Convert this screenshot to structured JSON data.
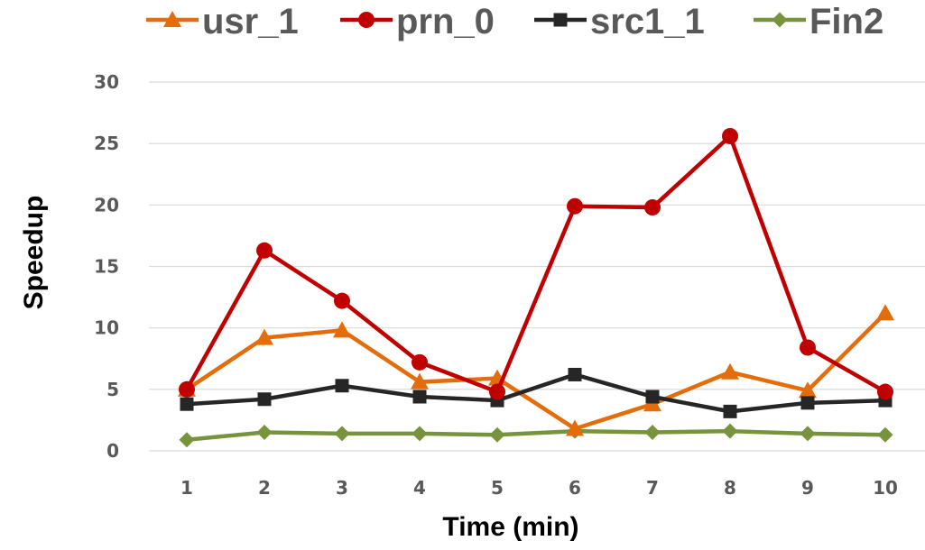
{
  "chart_data": {
    "type": "line",
    "xlabel": "Time (min)",
    "ylabel": "Speedup",
    "categories": [
      "1",
      "2",
      "3",
      "4",
      "5",
      "6",
      "7",
      "8",
      "9",
      "10"
    ],
    "ylim": [
      0,
      30
    ],
    "yticks": [
      "0",
      "5",
      "10",
      "15",
      "20",
      "25",
      "30"
    ],
    "grid": true,
    "legend_position": "top",
    "series": [
      {
        "name": "usr_1",
        "color": "#e46c0a",
        "marker": "triangle",
        "values": [
          5.0,
          9.2,
          9.8,
          5.6,
          5.9,
          1.8,
          3.8,
          6.4,
          4.9,
          11.2
        ]
      },
      {
        "name": "prn_0",
        "color": "#c00000",
        "marker": "circle",
        "values": [
          5.0,
          16.3,
          12.2,
          7.2,
          4.8,
          19.9,
          19.8,
          25.6,
          8.4,
          4.8
        ]
      },
      {
        "name": "src1_1",
        "color": "#262626",
        "marker": "square",
        "values": [
          3.8,
          4.2,
          5.3,
          4.4,
          4.1,
          6.2,
          4.4,
          3.2,
          3.9,
          4.1
        ]
      },
      {
        "name": "Fin2",
        "color": "#77933c",
        "marker": "diamond",
        "values": [
          0.9,
          1.5,
          1.4,
          1.4,
          1.3,
          1.6,
          1.5,
          1.6,
          1.4,
          1.3
        ]
      }
    ]
  }
}
